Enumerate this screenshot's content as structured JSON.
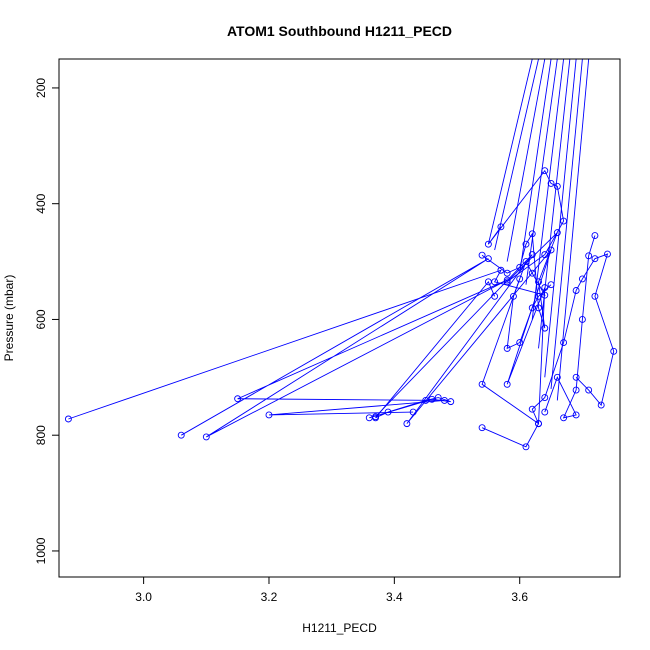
{
  "chart_data": {
    "type": "line",
    "title": "ATOM1 Southbound H1211_PECD",
    "xlabel": "H1211_PECD",
    "ylabel": "Pressure (mbar)",
    "xlim": [
      2.865,
      3.76
    ],
    "ylim": [
      1045,
      150
    ],
    "y_reversed": true,
    "x_ticks": [
      3.0,
      3.2,
      3.4,
      3.6
    ],
    "x_tick_labels": [
      "3.0",
      "3.2",
      "3.4",
      "3.6"
    ],
    "y_ticks": [
      200,
      400,
      600,
      800,
      1000
    ],
    "y_tick_labels": [
      "200",
      "400",
      "600",
      "800",
      "1000"
    ],
    "grid": false,
    "series_color": "#0000ff",
    "marker": "open-circle",
    "series": [
      {
        "x": [
          3.54,
          3.58,
          3.6,
          3.61,
          3.62,
          3.63,
          3.64,
          3.63,
          3.66,
          3.58,
          3.64,
          3.67,
          3.66,
          3.65,
          3.64,
          3.55,
          3.57
        ],
        "y": [
          489,
          520,
          510,
          470,
          452,
          580,
          615,
          535,
          450,
          535,
          488,
          430,
          370,
          365,
          343,
          470,
          440
        ]
      },
      {
        "x": [
          2.88,
          3.57,
          3.56,
          3.64,
          3.62,
          3.61,
          3.59,
          3.58,
          3.6,
          3.62,
          3.63,
          3.65
        ],
        "y": [
          772,
          515,
          535,
          558,
          520,
          500,
          560,
          650,
          640,
          580,
          560,
          540
        ]
      },
      {
        "x": [
          3.06,
          3.55,
          3.1,
          3.58,
          3.15,
          3.48,
          3.2,
          3.43
        ],
        "y": [
          800,
          495,
          803,
          532,
          737,
          740,
          765,
          760
        ]
      },
      {
        "x": [
          3.36,
          3.46,
          3.49,
          3.47,
          3.45,
          3.39,
          3.37,
          3.55,
          3.56
        ],
        "y": [
          770,
          738,
          742,
          735,
          740,
          760,
          770,
          535,
          560
        ]
      },
      {
        "x": [
          3.37,
          3.62,
          3.42,
          3.65,
          3.58,
          3.64,
          3.63,
          3.54,
          3.6
        ],
        "y": [
          768,
          488,
          780,
          480,
          712,
          545,
          780,
          712,
          530
        ]
      },
      {
        "x": [
          3.54,
          3.61,
          3.63,
          3.62,
          3.64,
          3.67,
          3.69,
          3.7,
          3.72,
          3.74,
          3.72,
          3.75,
          3.73,
          3.71,
          3.69
        ],
        "y": [
          787,
          820,
          780,
          755,
          735,
          640,
          550,
          530,
          495,
          487,
          560,
          655,
          748,
          722,
          700
        ]
      },
      {
        "x": [
          3.64,
          3.66,
          3.69,
          3.67,
          3.69,
          3.7,
          3.71,
          3.72
        ],
        "y": [
          760,
          700,
          765,
          770,
          722,
          600,
          490,
          455
        ]
      }
    ],
    "top_strands": {
      "x_top": [
        3.62,
        3.63,
        3.64,
        3.65,
        3.66,
        3.67,
        3.68,
        3.69,
        3.7,
        3.71
      ],
      "y_top": 150,
      "x_bottom": [
        3.55,
        3.56,
        3.58,
        3.6,
        3.61,
        3.62,
        3.63,
        3.64,
        3.65,
        3.66
      ],
      "y_bottom": [
        470,
        480,
        500,
        520,
        540,
        600,
        650,
        700,
        720,
        740
      ]
    }
  }
}
